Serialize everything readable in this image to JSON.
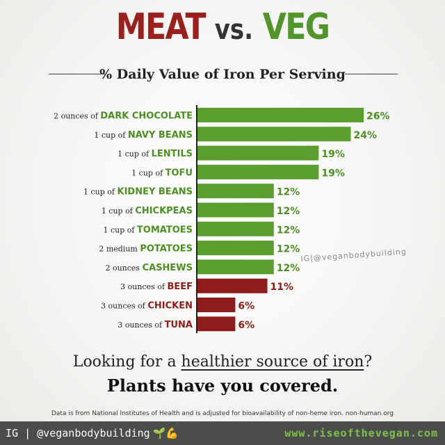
{
  "title": {
    "meat": "MEAT",
    "vs": "vs.",
    "veg": "VEG"
  },
  "subtitle": "% Daily Value of Iron Per Serving",
  "chart_data": {
    "type": "bar",
    "orientation": "horizontal",
    "xlim": [
      0,
      26
    ],
    "grid": false,
    "categories": [
      {
        "qty": "2 ounces of",
        "food": "DARK CHOCOLATE",
        "value": 26,
        "label": "26%",
        "group": "veg"
      },
      {
        "qty": "1 cup of",
        "food": "NAVY BEANS",
        "value": 24,
        "label": "24%",
        "group": "veg"
      },
      {
        "qty": "1 cup of",
        "food": "LENTILS",
        "value": 19,
        "label": "19%",
        "group": "veg"
      },
      {
        "qty": "1 cup of",
        "food": "TOFU",
        "value": 19,
        "label": "19%",
        "group": "veg"
      },
      {
        "qty": "1 cup of",
        "food": "KIDNEY BEANS",
        "value": 12,
        "label": "12%",
        "group": "veg"
      },
      {
        "qty": "1 cup of",
        "food": "CHICKPEAS",
        "value": 12,
        "label": "12%",
        "group": "veg"
      },
      {
        "qty": "1 cup of",
        "food": "TOMATOES",
        "value": 12,
        "label": "12%",
        "group": "veg"
      },
      {
        "qty": "2 medium",
        "food": "POTATOES",
        "value": 12,
        "label": "12%",
        "group": "veg"
      },
      {
        "qty": "2 ounces",
        "food": "CASHEWS",
        "value": 12,
        "label": "12%",
        "group": "veg"
      },
      {
        "qty": "3 ounces of",
        "food": "BEEF",
        "value": 11,
        "label": "11%",
        "group": "meat"
      },
      {
        "qty": "3 ounces of",
        "food": "CHICKEN",
        "value": 6,
        "label": "6%",
        "group": "meat"
      },
      {
        "qty": "3 ounces of",
        "food": "TUNA",
        "value": 6,
        "label": "6%",
        "group": "meat"
      }
    ],
    "colors": {
      "veg": "#5a9e2f",
      "meat": "#8e1c1a",
      "veg_text": "#4e8f22",
      "meat_text": "#8e1c1a",
      "axis": "#222222"
    }
  },
  "watermark": "IG|@veganbodybuilding",
  "tagline": {
    "before": "Looking for a ",
    "underlined": "healthier source of iron",
    "after": "?",
    "line2": "Plants have you covered."
  },
  "source": "Data is from National Institutes of Health and is adjusted for bioavailability of non-heme iron. non-human.org",
  "footer": {
    "handle": "IG | @veganbodybuilding",
    "icons": "🌱💪",
    "site": "www.riseofthevegan.com"
  }
}
